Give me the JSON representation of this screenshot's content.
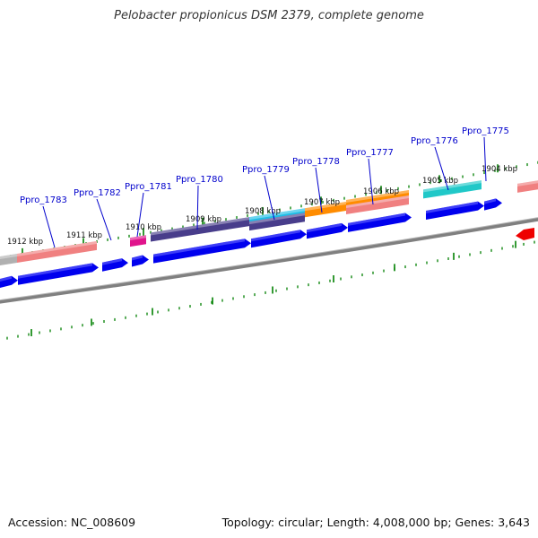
{
  "title": "Pelobacter propionicus DSM 2379, complete genome",
  "footer": {
    "accession": "Accession: NC_008609",
    "summary": "Topology: circular; Length: 4,008,000 bp; Genes: 3,643"
  },
  "ticks": [
    {
      "label": "1912 kbp",
      "kbp": 1912
    },
    {
      "label": "1911 kbp",
      "kbp": 1911
    },
    {
      "label": "1910 kbp",
      "kbp": 1910
    },
    {
      "label": "1909 kbp",
      "kbp": 1909
    },
    {
      "label": "1908 kbp",
      "kbp": 1908
    },
    {
      "label": "1907 kbp",
      "kbp": 1907
    },
    {
      "label": "1906 kbp",
      "kbp": 1906
    },
    {
      "label": "1905 kbp",
      "kbp": 1905
    },
    {
      "label": "1904 kbp",
      "kbp": 1904
    }
  ],
  "genes": [
    {
      "label": "Ppro_1783"
    },
    {
      "label": "Ppro_1782"
    },
    {
      "label": "Ppro_1781"
    },
    {
      "label": "Ppro_1780"
    },
    {
      "label": "Ppro_1779"
    },
    {
      "label": "Ppro_1778"
    },
    {
      "label": "Ppro_1777"
    },
    {
      "label": "Ppro_1776"
    },
    {
      "label": "Ppro_1775"
    }
  ],
  "colors": {
    "cds": "#0000ee",
    "backbone": "#808080",
    "tick": "#008000",
    "label": "#0000cc",
    "feature_salmon": "#f08080",
    "feature_gray": "#b0b0b0",
    "feature_magenta": "#e0148c",
    "feature_indigo": "#483d8b",
    "feature_cyan": "#1ebee6",
    "feature_orange": "#ff8c00",
    "feature_teal": "#20c8c8",
    "feature_red": "#ee0000"
  }
}
